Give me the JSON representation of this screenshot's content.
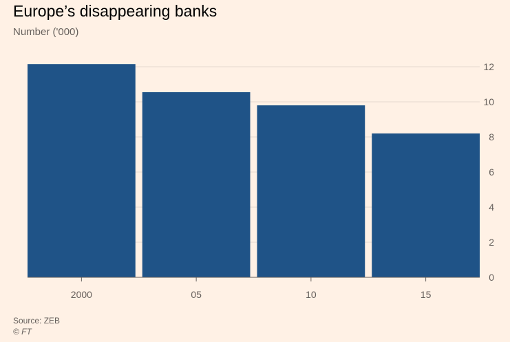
{
  "chart_data": {
    "type": "bar",
    "title": "Europe’s disappearing banks",
    "subtitle": "Number ('000)",
    "categories": [
      "2000",
      "05",
      "10",
      "15"
    ],
    "values": [
      12.15,
      10.55,
      9.8,
      8.2
    ],
    "xlabel": "",
    "ylabel": "Number ('000)",
    "ylim": [
      0,
      12
    ],
    "yticks": [
      0,
      2,
      4,
      6,
      8,
      10,
      12
    ],
    "y_axis_position": "right",
    "grid": true,
    "legend": "none",
    "bar_color": "#1F5387",
    "grid_color": "#E6D9CE",
    "axis_color": "#66605C",
    "background_color": "#FFF1E5"
  },
  "footer": {
    "source": "Source: ZEB",
    "credit": "© FT"
  }
}
